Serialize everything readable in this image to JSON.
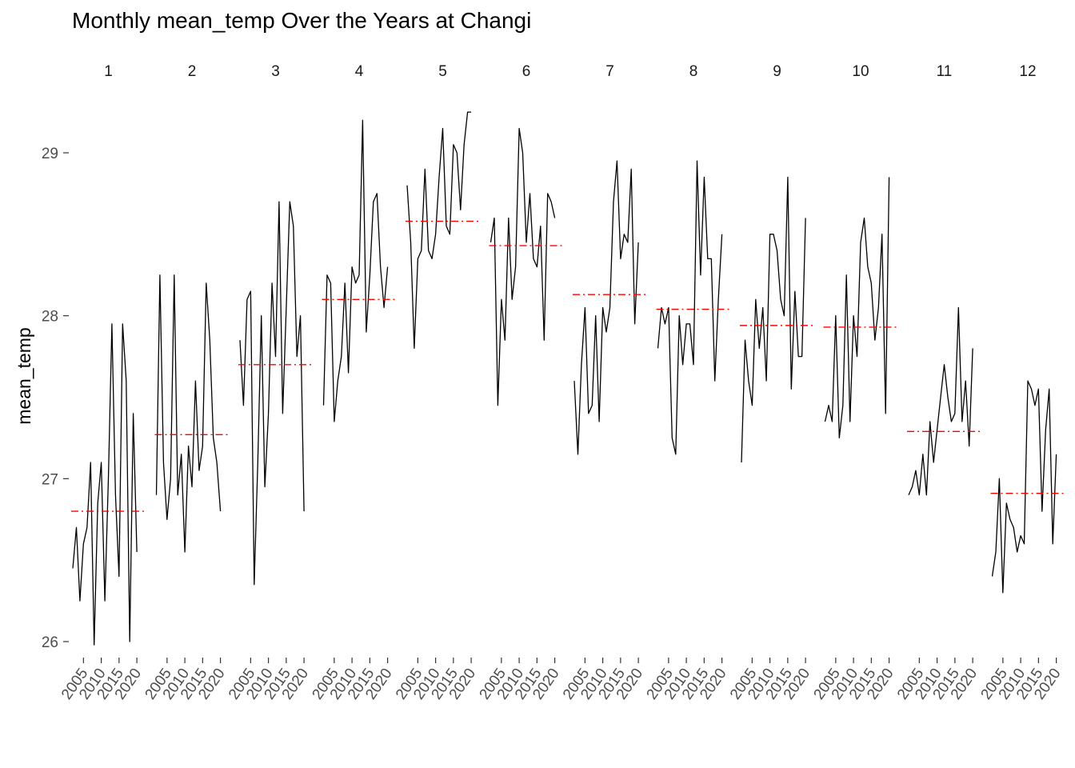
{
  "chart_data": {
    "type": "line",
    "title": "Monthly mean_temp Over the Years at Changi",
    "xlabel": "",
    "ylabel": "mean_temp",
    "facet_labels": [
      "1",
      "2",
      "3",
      "4",
      "5",
      "6",
      "7",
      "8",
      "9",
      "10",
      "11",
      "12"
    ],
    "x_ticks": [
      2005,
      2010,
      2015,
      2020
    ],
    "x_tick_labels": [
      "2005",
      "2010",
      "2015",
      "2020"
    ],
    "x_range": [
      2002,
      2022
    ],
    "y_ticks": [
      26,
      27,
      28,
      29
    ],
    "y_tick_labels": [
      "26",
      "27",
      "28",
      "29"
    ],
    "ylim": [
      25.85,
      29.3
    ],
    "mean_line_color": "#ff0000",
    "series_color": "#000000",
    "facets": [
      {
        "month": "1",
        "mean": 26.8,
        "x": [
          2002,
          2003,
          2004,
          2005,
          2006,
          2007,
          2008,
          2009,
          2010,
          2011,
          2012,
          2013,
          2014,
          2015,
          2016,
          2017,
          2018,
          2019,
          2020
        ],
        "y": [
          26.45,
          26.7,
          26.25,
          26.6,
          26.7,
          27.1,
          25.98,
          26.85,
          27.1,
          26.25,
          27.0,
          27.95,
          26.9,
          26.4,
          27.95,
          27.6,
          26.0,
          27.4,
          26.55
        ]
      },
      {
        "month": "2",
        "mean": 27.27,
        "x": [
          2002,
          2003,
          2004,
          2005,
          2006,
          2007,
          2008,
          2009,
          2010,
          2011,
          2012,
          2013,
          2014,
          2015,
          2016,
          2017,
          2018,
          2019,
          2020
        ],
        "y": [
          26.9,
          28.25,
          27.1,
          26.75,
          27.0,
          28.25,
          26.9,
          27.15,
          26.55,
          27.2,
          26.95,
          27.6,
          27.05,
          27.2,
          28.2,
          27.85,
          27.25,
          27.1,
          26.8
        ]
      },
      {
        "month": "3",
        "mean": 27.7,
        "x": [
          2002,
          2003,
          2004,
          2005,
          2006,
          2007,
          2008,
          2009,
          2010,
          2011,
          2012,
          2013,
          2014,
          2015,
          2016,
          2017,
          2018,
          2019,
          2020
        ],
        "y": [
          27.85,
          27.45,
          28.1,
          28.15,
          26.35,
          27.1,
          28.0,
          26.95,
          27.4,
          28.2,
          27.75,
          28.7,
          27.4,
          28.05,
          28.7,
          28.55,
          27.75,
          28.0,
          26.8
        ]
      },
      {
        "month": "4",
        "mean": 28.1,
        "x": [
          2002,
          2003,
          2004,
          2005,
          2006,
          2007,
          2008,
          2009,
          2010,
          2011,
          2012,
          2013,
          2014,
          2015,
          2016,
          2017,
          2018,
          2019,
          2020
        ],
        "y": [
          27.45,
          28.25,
          28.2,
          27.35,
          27.6,
          27.75,
          28.2,
          27.65,
          28.3,
          28.2,
          28.25,
          29.2,
          27.9,
          28.25,
          28.7,
          28.75,
          28.3,
          28.05,
          28.3
        ]
      },
      {
        "month": "5",
        "mean": 28.58,
        "x": [
          2002,
          2003,
          2004,
          2005,
          2006,
          2007,
          2008,
          2009,
          2010,
          2011,
          2012,
          2013,
          2014,
          2015,
          2016,
          2017,
          2018,
          2019,
          2020
        ],
        "y": [
          28.8,
          28.45,
          27.8,
          28.35,
          28.4,
          28.9,
          28.4,
          28.35,
          28.5,
          28.85,
          29.15,
          28.55,
          28.5,
          29.05,
          29.0,
          28.65,
          29.05,
          29.25,
          29.25
        ]
      },
      {
        "month": "6",
        "mean": 28.43,
        "x": [
          2002,
          2003,
          2004,
          2005,
          2006,
          2007,
          2008,
          2009,
          2010,
          2011,
          2012,
          2013,
          2014,
          2015,
          2016,
          2017,
          2018,
          2019,
          2020
        ],
        "y": [
          28.45,
          28.6,
          27.45,
          28.1,
          27.85,
          28.6,
          28.1,
          28.3,
          29.15,
          29.0,
          28.45,
          28.75,
          28.35,
          28.3,
          28.55,
          27.85,
          28.75,
          28.7,
          28.6
        ]
      },
      {
        "month": "7",
        "mean": 28.13,
        "x": [
          2002,
          2003,
          2004,
          2005,
          2006,
          2007,
          2008,
          2009,
          2010,
          2011,
          2012,
          2013,
          2014,
          2015,
          2016,
          2017,
          2018,
          2019,
          2020
        ],
        "y": [
          27.6,
          27.15,
          27.7,
          28.05,
          27.4,
          27.45,
          28.0,
          27.35,
          28.05,
          27.9,
          28.05,
          28.7,
          28.95,
          28.35,
          28.5,
          28.45,
          28.9,
          27.95,
          28.45
        ]
      },
      {
        "month": "8",
        "mean": 28.04,
        "x": [
          2002,
          2003,
          2004,
          2005,
          2006,
          2007,
          2008,
          2009,
          2010,
          2011,
          2012,
          2013,
          2014,
          2015,
          2016,
          2017,
          2018,
          2019,
          2020
        ],
        "y": [
          27.8,
          28.05,
          27.95,
          28.05,
          27.25,
          27.15,
          28.0,
          27.7,
          27.95,
          27.95,
          27.7,
          28.95,
          28.25,
          28.85,
          28.35,
          28.35,
          27.6,
          28.1,
          28.5
        ]
      },
      {
        "month": "9",
        "mean": 27.94,
        "x": [
          2002,
          2003,
          2004,
          2005,
          2006,
          2007,
          2008,
          2009,
          2010,
          2011,
          2012,
          2013,
          2014,
          2015,
          2016,
          2017,
          2018,
          2019,
          2020
        ],
        "y": [
          27.1,
          27.85,
          27.6,
          27.45,
          28.1,
          27.8,
          28.05,
          27.6,
          28.5,
          28.5,
          28.4,
          28.1,
          28.0,
          28.85,
          27.55,
          28.15,
          27.75,
          27.75,
          28.6
        ]
      },
      {
        "month": "10",
        "mean": 27.93,
        "x": [
          2002,
          2003,
          2004,
          2005,
          2006,
          2007,
          2008,
          2009,
          2010,
          2011,
          2012,
          2013,
          2014,
          2015,
          2016,
          2017,
          2018,
          2019,
          2020
        ],
        "y": [
          27.35,
          27.45,
          27.35,
          28.0,
          27.25,
          27.45,
          28.25,
          27.35,
          28.0,
          27.75,
          28.45,
          28.6,
          28.3,
          28.2,
          27.85,
          28.05,
          28.5,
          27.4,
          28.85
        ]
      },
      {
        "month": "11",
        "mean": 27.29,
        "x": [
          2002,
          2003,
          2004,
          2005,
          2006,
          2007,
          2008,
          2009,
          2010,
          2011,
          2012,
          2013,
          2014,
          2015,
          2016,
          2017,
          2018,
          2019,
          2020
        ],
        "y": [
          26.9,
          26.95,
          27.05,
          26.9,
          27.15,
          26.9,
          27.35,
          27.1,
          27.3,
          27.5,
          27.7,
          27.5,
          27.35,
          27.4,
          28.05,
          27.35,
          27.6,
          27.2,
          27.8
        ]
      },
      {
        "month": "12",
        "mean": 26.91,
        "x": [
          2002,
          2003,
          2004,
          2005,
          2006,
          2007,
          2008,
          2009,
          2010,
          2011,
          2012,
          2013,
          2014,
          2015,
          2016,
          2017,
          2018,
          2019,
          2020
        ],
        "y": [
          26.4,
          26.55,
          27.0,
          26.3,
          26.85,
          26.75,
          26.7,
          26.55,
          26.65,
          26.6,
          27.6,
          27.55,
          27.45,
          27.55,
          26.8,
          27.3,
          27.55,
          26.6,
          27.15
        ]
      }
    ]
  }
}
